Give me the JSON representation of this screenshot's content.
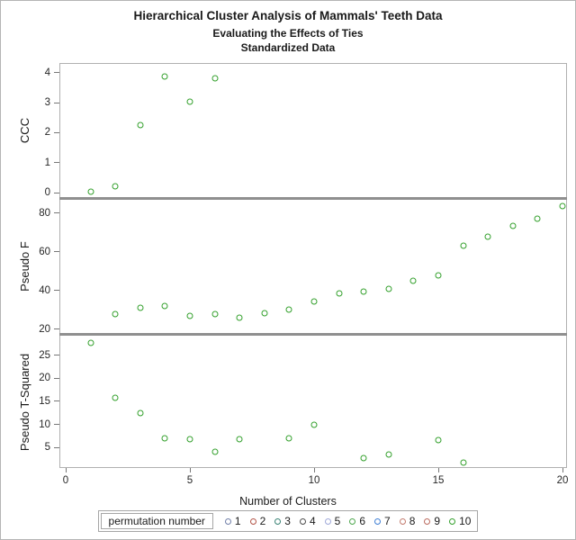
{
  "chart_data": {
    "type": "scatter",
    "title": "Hierarchical Cluster Analysis of Mammals' Teeth Data",
    "subtitle1": "Evaluating the Effects of Ties",
    "subtitle2": "Standardized Data",
    "xlabel": "Number of Clusters",
    "xticks": [
      0,
      5,
      10,
      15,
      20
    ],
    "xlim": [
      -0.25,
      20.2
    ],
    "grid": false,
    "legend_position": "bottom",
    "marker": "open-circle",
    "marker_color": "#33a02c",
    "panels": [
      {
        "name": "CCC",
        "ylabel": "CCC",
        "yticks": [
          0,
          1,
          2,
          3,
          4
        ],
        "ylim": [
          -0.15,
          4.33
        ],
        "x": [
          1,
          2,
          3,
          4,
          5,
          6
        ],
        "y": [
          0.02,
          0.2,
          2.25,
          3.88,
          3.05,
          3.83
        ]
      },
      {
        "name": "Pseudo F",
        "ylabel": "Pseudo F",
        "yticks": [
          20,
          40,
          60,
          80
        ],
        "ylim": [
          18.1,
          86.9
        ],
        "x": [
          2,
          3,
          4,
          5,
          6,
          7,
          8,
          9,
          10,
          11,
          12,
          13,
          14,
          15,
          16,
          17,
          18,
          19,
          20
        ],
        "y": [
          28,
          31,
          32,
          27,
          28,
          26,
          28.5,
          30,
          34.5,
          38.5,
          39.5,
          41,
          45,
          48,
          63,
          68,
          73.5,
          77,
          83.5
        ]
      },
      {
        "name": "Pseudo T-Squared",
        "ylabel": "Pseudo T-Squared",
        "yticks": [
          5,
          10,
          15,
          20,
          25
        ],
        "ylim": [
          0.5,
          29.3
        ],
        "x": [
          1,
          2,
          3,
          4,
          5,
          6,
          7,
          9,
          10,
          12,
          13,
          15,
          16
        ],
        "y": [
          27.8,
          15.8,
          12.5,
          7.0,
          6.7,
          4.0,
          6.8,
          7.0,
          10.0,
          2.6,
          3.5,
          6.5,
          1.6
        ]
      }
    ]
  },
  "legend": {
    "title": "permutation number",
    "entries": [
      {
        "label": "1",
        "color": "#707fa8"
      },
      {
        "label": "2",
        "color": "#b25346"
      },
      {
        "label": "3",
        "color": "#3a8274"
      },
      {
        "label": "4",
        "color": "#4d4d4d"
      },
      {
        "label": "5",
        "color": "#9fa8d9"
      },
      {
        "label": "6",
        "color": "#4da64d"
      },
      {
        "label": "7",
        "color": "#3f7fd4"
      },
      {
        "label": "8",
        "color": "#c27b6e"
      },
      {
        "label": "9",
        "color": "#ba6a5e"
      },
      {
        "label": "10",
        "color": "#33a02c"
      }
    ]
  },
  "colors": {
    "marker_green": "#33a02c",
    "panel_border": "#b0b0b0",
    "panel_separator": "#8f8f8f",
    "tick": "#777777",
    "text": "#1a1a1a"
  }
}
